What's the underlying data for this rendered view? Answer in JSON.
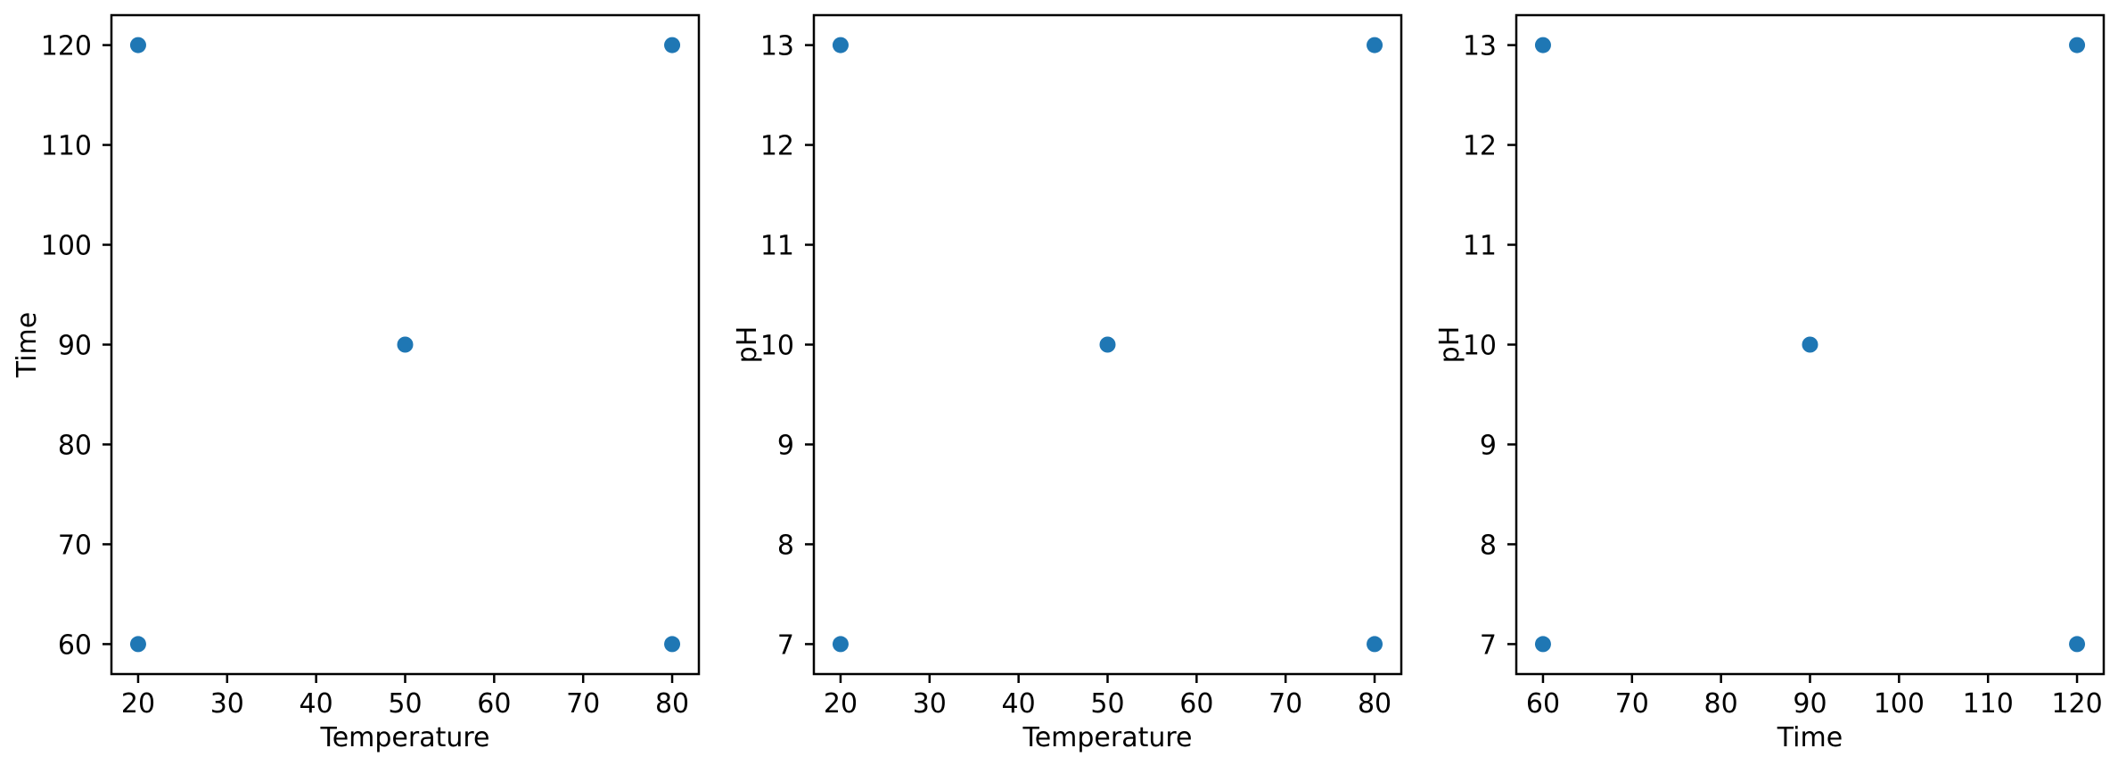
{
  "figure": {
    "background": "#ffffff",
    "spine_color": "#000000",
    "text_color": "#000000"
  },
  "chart_data": [
    {
      "type": "scatter",
      "title": "",
      "xlabel": "Temperature",
      "ylabel": "Time",
      "points": [
        [
          20,
          60
        ],
        [
          80,
          60
        ],
        [
          50,
          90
        ],
        [
          20,
          120
        ],
        [
          80,
          120
        ]
      ],
      "xlim": [
        17,
        83
      ],
      "ylim": [
        57,
        123
      ],
      "xticks": [
        20,
        30,
        40,
        50,
        60,
        70,
        80
      ],
      "yticks": [
        60,
        70,
        80,
        90,
        100,
        110,
        120
      ],
      "grid": false,
      "legend": null,
      "marker_color": "#1f77b4"
    },
    {
      "type": "scatter",
      "title": "",
      "xlabel": "Temperature",
      "ylabel": "pH",
      "points": [
        [
          20,
          7
        ],
        [
          80,
          7
        ],
        [
          50,
          10
        ],
        [
          20,
          13
        ],
        [
          80,
          13
        ]
      ],
      "xlim": [
        17,
        83
      ],
      "ylim": [
        6.7,
        13.3
      ],
      "xticks": [
        20,
        30,
        40,
        50,
        60,
        70,
        80
      ],
      "yticks": [
        7,
        8,
        9,
        10,
        11,
        12,
        13
      ],
      "grid": false,
      "legend": null,
      "marker_color": "#1f77b4"
    },
    {
      "type": "scatter",
      "title": "",
      "xlabel": "Time",
      "ylabel": "pH",
      "points": [
        [
          60,
          7
        ],
        [
          120,
          7
        ],
        [
          90,
          10
        ],
        [
          60,
          13
        ],
        [
          120,
          13
        ]
      ],
      "xlim": [
        57,
        123
      ],
      "ylim": [
        6.7,
        13.3
      ],
      "xticks": [
        60,
        70,
        80,
        90,
        100,
        110,
        120
      ],
      "yticks": [
        7,
        8,
        9,
        10,
        11,
        12,
        13
      ],
      "grid": false,
      "legend": null,
      "marker_color": "#1f77b4"
    }
  ]
}
